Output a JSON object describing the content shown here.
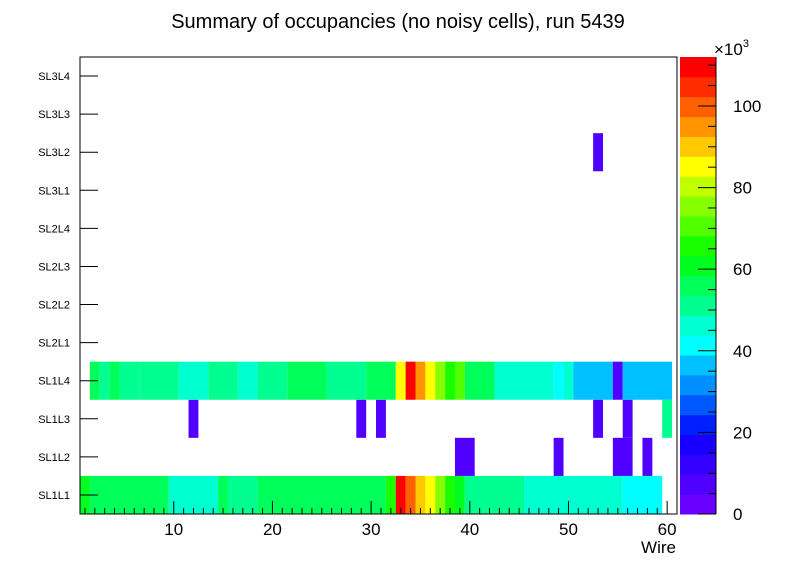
{
  "chart_data": {
    "type": "heatmap",
    "title": "Summary of occupancies (no noisy cells), run 5439",
    "xlabel": "Wire",
    "ylabel": "",
    "xlim": [
      0.5,
      61
    ],
    "x_ticks": [
      10,
      20,
      30,
      40,
      50,
      60
    ],
    "categories": [
      "SL1L1",
      "SL1L2",
      "SL1L3",
      "SL1L4",
      "SL2L1",
      "SL2L2",
      "SL2L3",
      "SL2L4",
      "SL3L1",
      "SL3L2",
      "SL3L3",
      "SL3L4"
    ],
    "zlim": [
      0,
      112000
    ],
    "z_ticks": [
      0,
      20,
      40,
      60,
      80,
      100
    ],
    "z_ticks_labels": [
      "0",
      "20",
      "40",
      "60",
      "80",
      "100"
    ],
    "z_multiplier": "×10",
    "z_multiplier_exp": "3",
    "palette": [
      "#6a00ff",
      "#4f00ff",
      "#3400ff",
      "#1700ff",
      "#0020ff",
      "#0058ff",
      "#0090ff",
      "#00c0ff",
      "#00ffff",
      "#00ffd0",
      "#00ff90",
      "#00ff58",
      "#00ff20",
      "#18ff00",
      "#50ff00",
      "#88ff00",
      "#c0ff00",
      "#ffff00",
      "#ffc800",
      "#ff9400",
      "#ff6000",
      "#ff2c00",
      "#ff0000"
    ],
    "rows": [
      {
        "layer": "SL1L1",
        "cells": [
          {
            "from": 0.5,
            "to": 1.5,
            "value": 62000
          },
          {
            "from": 1.5,
            "to": 9.5,
            "value": 58000
          },
          {
            "from": 9.5,
            "to": 14.5,
            "value": 48000
          },
          {
            "from": 14.5,
            "to": 15.5,
            "value": 56000
          },
          {
            "from": 15.5,
            "to": 18.5,
            "value": 50000
          },
          {
            "from": 18.5,
            "to": 31.5,
            "value": 58000
          },
          {
            "from": 31.5,
            "to": 32.5,
            "value": 66000
          },
          {
            "from": 32.5,
            "to": 33.5,
            "value": 108000
          },
          {
            "from": 33.5,
            "to": 34.5,
            "value": 100000
          },
          {
            "from": 34.5,
            "to": 35.5,
            "value": 88000
          },
          {
            "from": 35.5,
            "to": 36.5,
            "value": 84000
          },
          {
            "from": 36.5,
            "to": 37.5,
            "value": 74000
          },
          {
            "from": 37.5,
            "to": 38.5,
            "value": 66000
          },
          {
            "from": 38.5,
            "to": 39.5,
            "value": 62000
          },
          {
            "from": 39.5,
            "to": 45.5,
            "value": 50000
          },
          {
            "from": 45.5,
            "to": 55.5,
            "value": 44000
          },
          {
            "from": 55.5,
            "to": 59.5,
            "value": 40000
          }
        ]
      },
      {
        "layer": "SL1L2",
        "cells": [
          {
            "from": 38.5,
            "to": 40.5,
            "value": 5000
          },
          {
            "from": 48.5,
            "to": 49.5,
            "value": 5000
          },
          {
            "from": 54.5,
            "to": 56.5,
            "value": 5000
          },
          {
            "from": 57.5,
            "to": 58.5,
            "value": 5000
          }
        ]
      },
      {
        "layer": "SL1L3",
        "cells": [
          {
            "from": 11.5,
            "to": 12.5,
            "value": 5000
          },
          {
            "from": 28.5,
            "to": 29.5,
            "value": 5000
          },
          {
            "from": 30.5,
            "to": 31.5,
            "value": 5000
          },
          {
            "from": 52.5,
            "to": 53.5,
            "value": 5000
          },
          {
            "from": 55.5,
            "to": 56.5,
            "value": 5000
          },
          {
            "from": 59.5,
            "to": 60.5,
            "value": 50000
          }
        ]
      },
      {
        "layer": "SL1L4",
        "cells": [
          {
            "from": 1.5,
            "to": 2.5,
            "value": 56000
          },
          {
            "from": 2.5,
            "to": 3.5,
            "value": 50000
          },
          {
            "from": 3.5,
            "to": 4.5,
            "value": 56000
          },
          {
            "from": 4.5,
            "to": 6.5,
            "value": 50000
          },
          {
            "from": 6.5,
            "to": 10.5,
            "value": 50000
          },
          {
            "from": 10.5,
            "to": 13.5,
            "value": 44000
          },
          {
            "from": 13.5,
            "to": 16.5,
            "value": 50000
          },
          {
            "from": 16.5,
            "to": 18.5,
            "value": 44000
          },
          {
            "from": 18.5,
            "to": 21.5,
            "value": 50000
          },
          {
            "from": 21.5,
            "to": 25.5,
            "value": 58000
          },
          {
            "from": 25.5,
            "to": 29.5,
            "value": 50000
          },
          {
            "from": 29.5,
            "to": 32.5,
            "value": 56000
          },
          {
            "from": 32.5,
            "to": 33.5,
            "value": 84000
          },
          {
            "from": 33.5,
            "to": 34.5,
            "value": 108000
          },
          {
            "from": 34.5,
            "to": 35.5,
            "value": 96000
          },
          {
            "from": 35.5,
            "to": 36.5,
            "value": 86000
          },
          {
            "from": 36.5,
            "to": 37.5,
            "value": 76000
          },
          {
            "from": 37.5,
            "to": 38.5,
            "value": 66000
          },
          {
            "from": 38.5,
            "to": 39.5,
            "value": 72000
          },
          {
            "from": 39.5,
            "to": 42.5,
            "value": 56000
          },
          {
            "from": 42.5,
            "to": 48.5,
            "value": 44000
          },
          {
            "from": 48.5,
            "to": 49.5,
            "value": 42000
          },
          {
            "from": 49.5,
            "to": 50.5,
            "value": 44000
          },
          {
            "from": 50.5,
            "to": 54.5,
            "value": 38000
          },
          {
            "from": 54.5,
            "to": 55.5,
            "value": 5000
          },
          {
            "from": 55.5,
            "to": 60.5,
            "value": 38000
          }
        ]
      },
      {
        "layer": "SL3L2",
        "cells": [
          {
            "from": 52.5,
            "to": 53.5,
            "value": 5000
          }
        ]
      }
    ]
  }
}
